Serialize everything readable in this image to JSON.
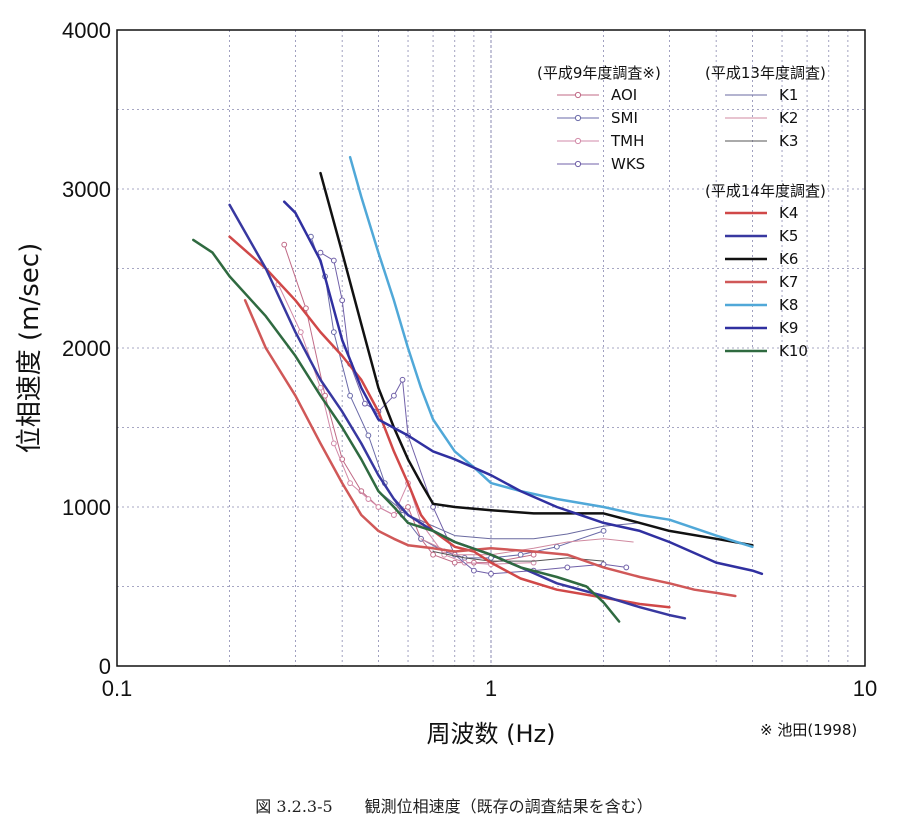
{
  "chart_data": {
    "type": "line",
    "xscale": "log",
    "xlim": [
      0.1,
      10
    ],
    "ylim": [
      0,
      4000
    ],
    "xlabel": "周波数 (Hz)",
    "ylabel": "位相速度 (m/sec)",
    "x_ticks": [
      "0.1",
      "1",
      "10"
    ],
    "y_ticks": [
      "0",
      "1000",
      "2000",
      "3000",
      "4000"
    ],
    "grid": true,
    "legend_position": "top-right",
    "legend_groups": [
      {
        "title": "(平成9年度調査※)",
        "entries": [
          "AOI",
          "SMI",
          "TMH",
          "WKS"
        ]
      },
      {
        "title": "(平成13年度調査)",
        "entries": [
          "K1",
          "K2",
          "K3"
        ]
      },
      {
        "title": "(平成14年度調査)",
        "entries": [
          "K4",
          "K5",
          "K6",
          "K7",
          "K8",
          "K9",
          "K10"
        ]
      }
    ],
    "source_note": "※ 池田(1998)",
    "caption": "図 3.2.3-5　　観測位相速度（既存の調査結果を含む）",
    "series": [
      {
        "name": "AOI",
        "color": "#c06a86",
        "marker": "circle",
        "width": 1,
        "points": [
          [
            0.28,
            2650
          ],
          [
            0.32,
            2250
          ],
          [
            0.36,
            1700
          ],
          [
            0.4,
            1300
          ],
          [
            0.45,
            1100
          ],
          [
            0.5,
            1000
          ],
          [
            0.55,
            950
          ],
          [
            0.6,
            1000
          ],
          [
            0.65,
            800
          ],
          [
            0.7,
            700
          ],
          [
            0.8,
            650
          ],
          [
            0.9,
            650
          ],
          [
            1.0,
            650
          ],
          [
            1.3,
            700
          ]
        ]
      },
      {
        "name": "SMI",
        "color": "#6a6aa8",
        "marker": "circle",
        "width": 1,
        "points": [
          [
            0.33,
            2700
          ],
          [
            0.36,
            2450
          ],
          [
            0.38,
            2100
          ],
          [
            0.42,
            1700
          ],
          [
            0.47,
            1450
          ],
          [
            0.52,
            1150
          ],
          [
            0.58,
            950
          ],
          [
            0.65,
            800
          ],
          [
            0.75,
            720
          ],
          [
            0.85,
            680
          ],
          [
            1.0,
            680
          ],
          [
            1.2,
            700
          ],
          [
            1.5,
            750
          ],
          [
            2.0,
            850
          ]
        ]
      },
      {
        "name": "TMH",
        "color": "#d28aa8",
        "marker": "circle",
        "width": 1,
        "points": [
          [
            0.27,
            2400
          ],
          [
            0.31,
            2100
          ],
          [
            0.35,
            1750
          ],
          [
            0.38,
            1400
          ],
          [
            0.42,
            1150
          ],
          [
            0.47,
            1050
          ],
          [
            0.5,
            1000
          ],
          [
            0.55,
            950
          ],
          [
            0.6,
            1150
          ],
          [
            0.65,
            900
          ],
          [
            0.75,
            700
          ],
          [
            0.85,
            650
          ],
          [
            1.0,
            640
          ],
          [
            1.3,
            650
          ]
        ]
      },
      {
        "name": "WKS",
        "color": "#7060a8",
        "marker": "circle",
        "width": 1,
        "points": [
          [
            0.35,
            2600
          ],
          [
            0.38,
            2550
          ],
          [
            0.4,
            2300
          ],
          [
            0.42,
            1900
          ],
          [
            0.46,
            1650
          ],
          [
            0.5,
            1600
          ],
          [
            0.55,
            1700
          ],
          [
            0.58,
            1800
          ],
          [
            0.6,
            1450
          ],
          [
            0.7,
            1000
          ],
          [
            0.8,
            700
          ],
          [
            0.9,
            600
          ],
          [
            1.0,
            580
          ],
          [
            1.3,
            600
          ],
          [
            1.6,
            620
          ],
          [
            2.0,
            640
          ],
          [
            2.3,
            620
          ]
        ]
      },
      {
        "name": "K1",
        "color": "#6a6aa0",
        "marker": "none",
        "width": 1,
        "points": [
          [
            0.5,
            1100
          ],
          [
            0.6,
            950
          ],
          [
            0.7,
            880
          ],
          [
            0.8,
            820
          ],
          [
            1.0,
            800
          ],
          [
            1.3,
            800
          ],
          [
            1.6,
            830
          ],
          [
            2.0,
            880
          ],
          [
            2.5,
            900
          ]
        ]
      },
      {
        "name": "K2",
        "color": "#d08aa0",
        "marker": "none",
        "width": 1,
        "points": [
          [
            0.65,
            800
          ],
          [
            0.8,
            700
          ],
          [
            1.0,
            700
          ],
          [
            1.3,
            740
          ],
          [
            1.6,
            780
          ],
          [
            2.0,
            800
          ],
          [
            2.4,
            780
          ]
        ]
      },
      {
        "name": "K3",
        "color": "#555555",
        "marker": "none",
        "width": 1,
        "points": [
          [
            0.7,
            720
          ],
          [
            0.85,
            680
          ],
          [
            1.0,
            660
          ],
          [
            1.3,
            660
          ],
          [
            1.6,
            680
          ],
          [
            2.0,
            660
          ]
        ]
      },
      {
        "name": "K4",
        "color": "#d04848",
        "marker": "none",
        "width": 2.5,
        "points": [
          [
            0.2,
            2700
          ],
          [
            0.25,
            2500
          ],
          [
            0.3,
            2300
          ],
          [
            0.35,
            2100
          ],
          [
            0.4,
            1950
          ],
          [
            0.45,
            1800
          ],
          [
            0.5,
            1600
          ],
          [
            0.55,
            1350
          ],
          [
            0.6,
            1150
          ],
          [
            0.65,
            950
          ],
          [
            0.7,
            850
          ],
          [
            0.8,
            750
          ],
          [
            0.9,
            720
          ],
          [
            1.0,
            650
          ],
          [
            1.2,
            550
          ],
          [
            1.5,
            480
          ],
          [
            2.0,
            430
          ],
          [
            2.5,
            390
          ],
          [
            3.0,
            370
          ]
        ]
      },
      {
        "name": "K5",
        "color": "#3838a0",
        "marker": "none",
        "width": 2.5,
        "points": [
          [
            0.2,
            2900
          ],
          [
            0.25,
            2500
          ],
          [
            0.3,
            2100
          ],
          [
            0.35,
            1800
          ],
          [
            0.4,
            1600
          ],
          [
            0.45,
            1400
          ],
          [
            0.5,
            1200
          ],
          [
            0.55,
            1050
          ],
          [
            0.6,
            950
          ],
          [
            0.7,
            850
          ],
          [
            0.8,
            780
          ],
          [
            1.0,
            700
          ],
          [
            1.2,
            620
          ],
          [
            1.5,
            520
          ],
          [
            2.0,
            440
          ],
          [
            2.5,
            370
          ],
          [
            3.0,
            320
          ],
          [
            3.3,
            300
          ]
        ]
      },
      {
        "name": "K6",
        "color": "#111111",
        "marker": "none",
        "width": 2.5,
        "points": [
          [
            0.35,
            3100
          ],
          [
            0.4,
            2600
          ],
          [
            0.45,
            2150
          ],
          [
            0.5,
            1750
          ],
          [
            0.55,
            1500
          ],
          [
            0.6,
            1300
          ],
          [
            0.65,
            1150
          ],
          [
            0.7,
            1020
          ],
          [
            0.8,
            1000
          ],
          [
            1.0,
            980
          ],
          [
            1.3,
            960
          ],
          [
            1.6,
            960
          ],
          [
            2.0,
            960
          ],
          [
            2.5,
            900
          ],
          [
            3.0,
            850
          ],
          [
            4.0,
            800
          ],
          [
            5.0,
            760
          ]
        ]
      },
      {
        "name": "K7",
        "color": "#d05858",
        "marker": "none",
        "width": 2.5,
        "points": [
          [
            0.22,
            2300
          ],
          [
            0.25,
            2000
          ],
          [
            0.3,
            1700
          ],
          [
            0.35,
            1400
          ],
          [
            0.4,
            1150
          ],
          [
            0.45,
            950
          ],
          [
            0.5,
            850
          ],
          [
            0.55,
            800
          ],
          [
            0.6,
            760
          ],
          [
            0.7,
            740
          ],
          [
            0.8,
            720
          ],
          [
            1.0,
            740
          ],
          [
            1.3,
            720
          ],
          [
            1.6,
            700
          ],
          [
            2.0,
            620
          ],
          [
            2.5,
            560
          ],
          [
            3.0,
            520
          ],
          [
            3.5,
            480
          ],
          [
            4.0,
            460
          ],
          [
            4.5,
            440
          ]
        ]
      },
      {
        "name": "K8",
        "color": "#50a8d8",
        "marker": "none",
        "width": 2.5,
        "points": [
          [
            0.42,
            3200
          ],
          [
            0.45,
            2950
          ],
          [
            0.5,
            2600
          ],
          [
            0.55,
            2300
          ],
          [
            0.6,
            2000
          ],
          [
            0.65,
            1750
          ],
          [
            0.7,
            1550
          ],
          [
            0.8,
            1350
          ],
          [
            0.9,
            1250
          ],
          [
            1.0,
            1150
          ],
          [
            1.2,
            1100
          ],
          [
            1.5,
            1050
          ],
          [
            2.0,
            1000
          ],
          [
            2.5,
            950
          ],
          [
            3.0,
            920
          ],
          [
            4.0,
            820
          ],
          [
            5.0,
            750
          ]
        ]
      },
      {
        "name": "K9",
        "color": "#3030a0",
        "marker": "none",
        "width": 2.5,
        "points": [
          [
            0.28,
            2920
          ],
          [
            0.3,
            2850
          ],
          [
            0.35,
            2550
          ],
          [
            0.4,
            2050
          ],
          [
            0.45,
            1750
          ],
          [
            0.5,
            1550
          ],
          [
            0.6,
            1450
          ],
          [
            0.7,
            1350
          ],
          [
            0.8,
            1300
          ],
          [
            1.0,
            1200
          ],
          [
            1.2,
            1100
          ],
          [
            1.5,
            1000
          ],
          [
            2.0,
            900
          ],
          [
            2.5,
            850
          ],
          [
            3.0,
            780
          ],
          [
            4.0,
            650
          ],
          [
            5.0,
            600
          ],
          [
            5.3,
            580
          ]
        ]
      },
      {
        "name": "K10",
        "color": "#2f6a40",
        "marker": "none",
        "width": 2.5,
        "points": [
          [
            0.16,
            2680
          ],
          [
            0.18,
            2600
          ],
          [
            0.2,
            2450
          ],
          [
            0.25,
            2200
          ],
          [
            0.3,
            1950
          ],
          [
            0.35,
            1700
          ],
          [
            0.4,
            1500
          ],
          [
            0.45,
            1300
          ],
          [
            0.5,
            1100
          ],
          [
            0.55,
            1000
          ],
          [
            0.6,
            900
          ],
          [
            0.7,
            850
          ],
          [
            0.8,
            780
          ],
          [
            1.0,
            700
          ],
          [
            1.2,
            620
          ],
          [
            1.5,
            560
          ],
          [
            1.8,
            500
          ],
          [
            2.0,
            400
          ],
          [
            2.2,
            280
          ]
        ]
      }
    ]
  }
}
